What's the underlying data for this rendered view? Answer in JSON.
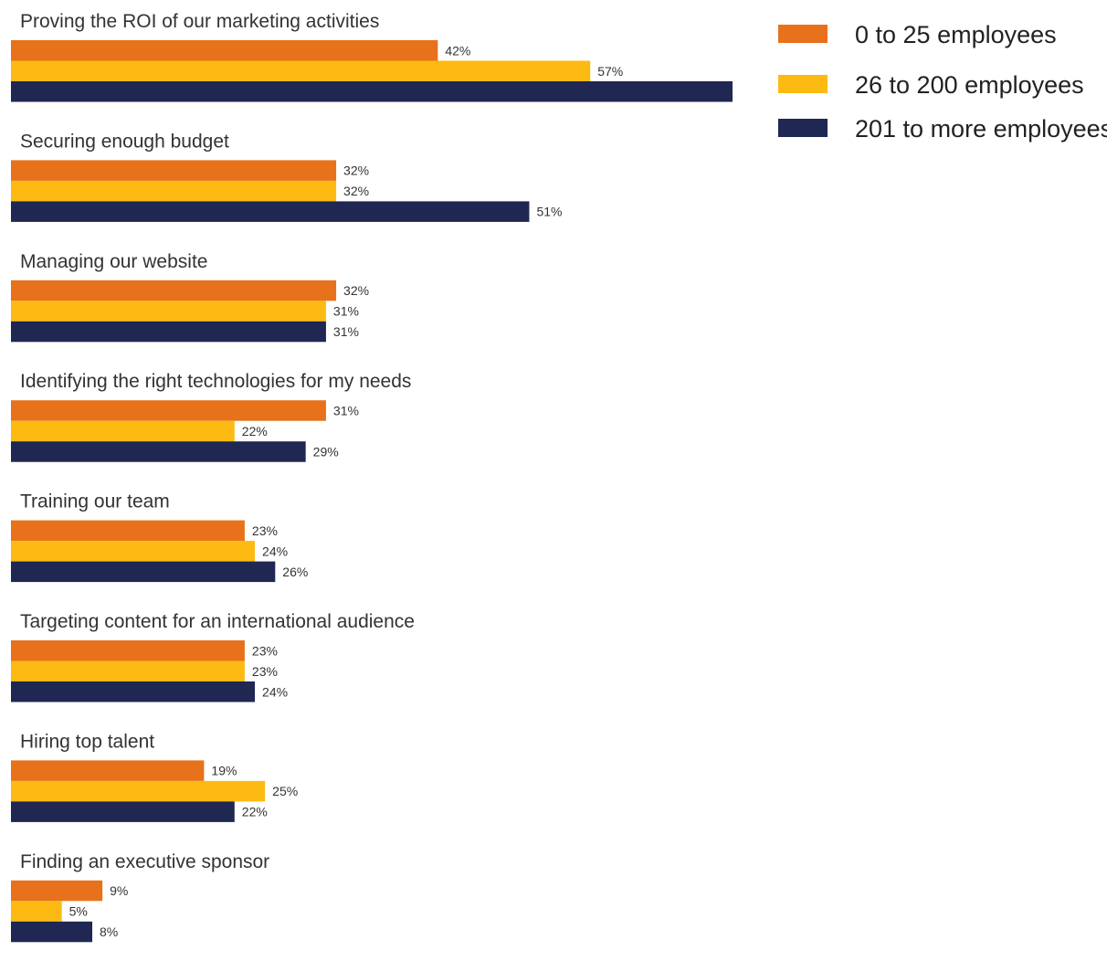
{
  "chart_data": {
    "type": "bar",
    "orientation": "horizontal",
    "categories": [
      "Proving the ROI of our marketing activities",
      "Securing enough budget",
      "Managing our website",
      "Identifying the right technologies for my needs",
      "Training our team",
      "Targeting content for an international audience",
      "Hiring top talent",
      "Finding an executive sponsor"
    ],
    "series": [
      {
        "name": "0 to 25 employees",
        "color": "#E8711C",
        "values": [
          42,
          32,
          32,
          31,
          23,
          23,
          19,
          9
        ],
        "labels": [
          "42%",
          "32%",
          "32%",
          "31%",
          "23%",
          "23%",
          "19%",
          "9%"
        ]
      },
      {
        "name": "26 to 200 employees",
        "color": "#FDBA12",
        "values": [
          57,
          32,
          31,
          22,
          24,
          23,
          25,
          5
        ],
        "labels": [
          "57%",
          "32%",
          "31%",
          "22%",
          "24%",
          "23%",
          "25%",
          "5%"
        ]
      },
      {
        "name": "201 to more employees",
        "color": "#1F2752",
        "values": [
          71,
          51,
          31,
          29,
          26,
          24,
          22,
          8
        ],
        "labels": [
          "",
          "51%",
          "31%",
          "29%",
          "26%",
          "24%",
          "22%",
          "8%"
        ]
      }
    ],
    "legend": "top-right",
    "grid": false,
    "xlim": [
      0,
      71
    ]
  }
}
